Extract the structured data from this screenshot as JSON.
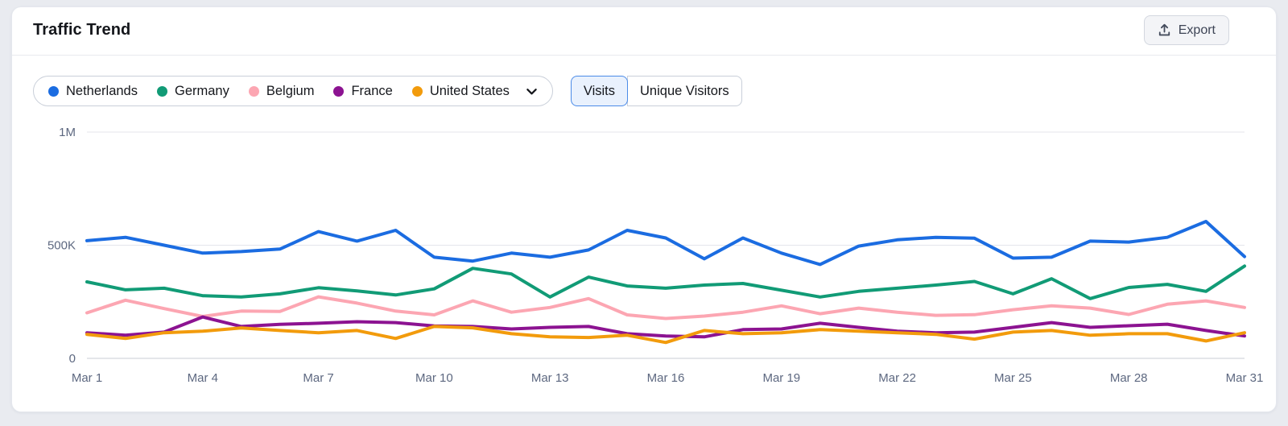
{
  "header": {
    "title": "Traffic Trend",
    "export_label": "Export"
  },
  "legend": {
    "items": [
      {
        "label": "Netherlands",
        "color": "#1b6ce1"
      },
      {
        "label": "Germany",
        "color": "#119b76"
      },
      {
        "label": "Belgium",
        "color": "#fca6b2"
      },
      {
        "label": "France",
        "color": "#8c1391"
      },
      {
        "label": "United States",
        "color": "#f29b0c"
      }
    ],
    "expand_icon": "chevron-down"
  },
  "metric_toggle": {
    "options": [
      {
        "label": "Visits",
        "selected": true
      },
      {
        "label": "Unique Visitors",
        "selected": false
      }
    ]
  },
  "chart_data": {
    "type": "line",
    "title": "Traffic Trend",
    "xlabel": "",
    "ylabel": "Visits",
    "values_in": "thousands",
    "ylim": [
      0,
      1000
    ],
    "grid": "horizontal",
    "legend_position": "top-left",
    "y_ticks": [
      {
        "value": 0,
        "label": "0"
      },
      {
        "value": 500,
        "label": "500K"
      },
      {
        "value": 1000,
        "label": "1M"
      }
    ],
    "x": [
      "Mar 1",
      "Mar 2",
      "Mar 3",
      "Mar 4",
      "Mar 5",
      "Mar 6",
      "Mar 7",
      "Mar 8",
      "Mar 9",
      "Mar 10",
      "Mar 11",
      "Mar 12",
      "Mar 13",
      "Mar 14",
      "Mar 15",
      "Mar 16",
      "Mar 17",
      "Mar 18",
      "Mar 19",
      "Mar 20",
      "Mar 21",
      "Mar 22",
      "Mar 23",
      "Mar 24",
      "Mar 25",
      "Mar 26",
      "Mar 27",
      "Mar 28",
      "Mar 29",
      "Mar 30",
      "Mar 31"
    ],
    "x_tick_labels": [
      "Mar 1",
      "Mar 4",
      "Mar 7",
      "Mar 10",
      "Mar 13",
      "Mar 16",
      "Mar 19",
      "Mar 22",
      "Mar 25",
      "Mar 28",
      "Mar 31"
    ],
    "series": [
      {
        "name": "Netherlands",
        "color": "#1b6ce1",
        "values": [
          520,
          535,
          500,
          465,
          472,
          483,
          560,
          518,
          566,
          447,
          430,
          465,
          447,
          479,
          566,
          532,
          440,
          532,
          465,
          415,
          496,
          524,
          535,
          531,
          443,
          447,
          518,
          514,
          535,
          605,
          450
        ]
      },
      {
        "name": "Germany",
        "color": "#119b76",
        "values": [
          338,
          303,
          310,
          277,
          271,
          285,
          312,
          298,
          280,
          307,
          398,
          373,
          271,
          359,
          320,
          310,
          324,
          331,
          301,
          271,
          296,
          310,
          324,
          340,
          285,
          352,
          264,
          313,
          327,
          296,
          408
        ]
      },
      {
        "name": "Belgium",
        "color": "#fca6b2",
        "values": [
          201,
          257,
          220,
          185,
          209,
          207,
          272,
          244,
          209,
          192,
          254,
          204,
          225,
          264,
          192,
          176,
          187,
          204,
          232,
          197,
          222,
          204,
          190,
          193,
          215,
          232,
          222,
          194,
          239,
          254,
          225
        ]
      },
      {
        "name": "France",
        "color": "#8c1391",
        "values": [
          113,
          102,
          116,
          183,
          141,
          150,
          155,
          162,
          158,
          143,
          141,
          130,
          137,
          141,
          109,
          99,
          95,
          127,
          130,
          155,
          137,
          120,
          113,
          116,
          137,
          158,
          137,
          144,
          151,
          123,
          99
        ]
      },
      {
        "name": "United States",
        "color": "#f29b0c",
        "values": [
          106,
          88,
          113,
          120,
          134,
          123,
          113,
          123,
          88,
          141,
          135,
          109,
          95,
          92,
          102,
          70,
          123,
          109,
          113,
          127,
          120,
          113,
          106,
          85,
          116,
          123,
          102,
          109,
          109,
          77,
          113
        ]
      }
    ]
  }
}
